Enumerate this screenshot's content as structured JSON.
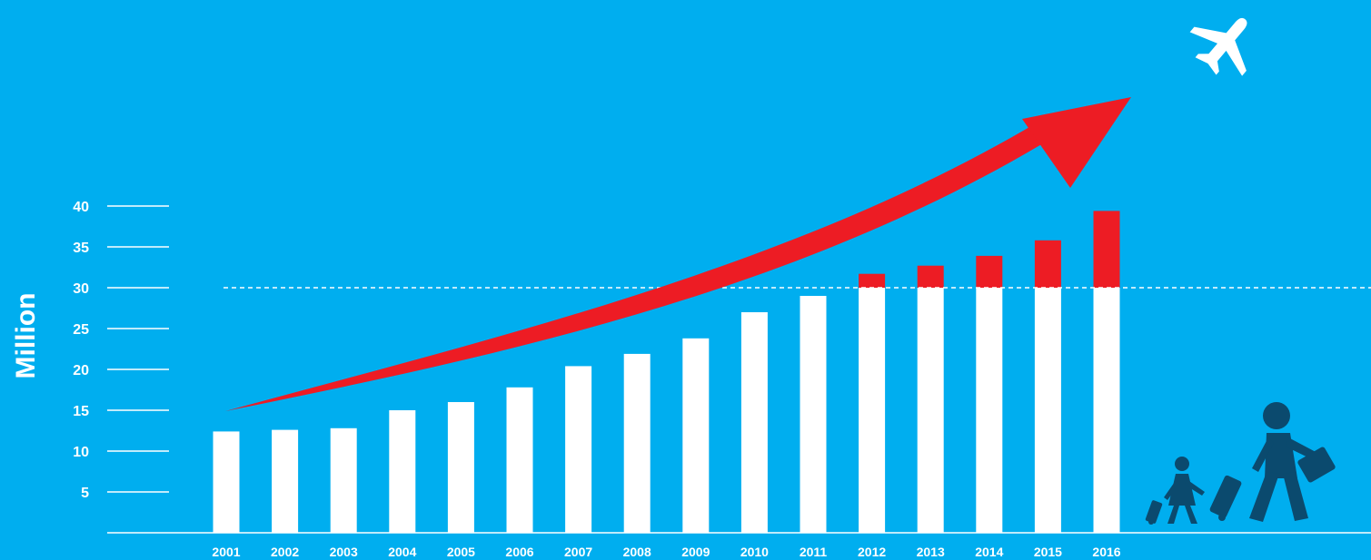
{
  "chart_data": {
    "type": "bar",
    "ylabel": "Million",
    "xlabel": "",
    "title": "",
    "ylim": [
      0,
      40
    ],
    "yticks": [
      5,
      10,
      15,
      20,
      25,
      30,
      35,
      40
    ],
    "reference_line": 30,
    "categories": [
      "2001",
      "2002",
      "2003",
      "2004",
      "2005",
      "2006",
      "2007",
      "2008",
      "2009",
      "2010",
      "2011",
      "2012",
      "2013",
      "2014",
      "2015",
      "2016"
    ],
    "values": [
      12.4,
      12.6,
      12.8,
      15.0,
      16.0,
      17.8,
      20.4,
      21.9,
      23.8,
      27.0,
      29.0,
      31.7,
      32.7,
      33.9,
      35.8,
      39.4
    ],
    "colors": {
      "background": "#00aeef",
      "bar": "#ffffff",
      "bar_above_reference": "#ed1c24",
      "trend_arrow": "#ed1c24",
      "icons": "#0b4a6e"
    },
    "grid": false,
    "legend": "none"
  },
  "icons": {
    "airplane": "airplane-icon",
    "travelers": "travelers-icon"
  }
}
